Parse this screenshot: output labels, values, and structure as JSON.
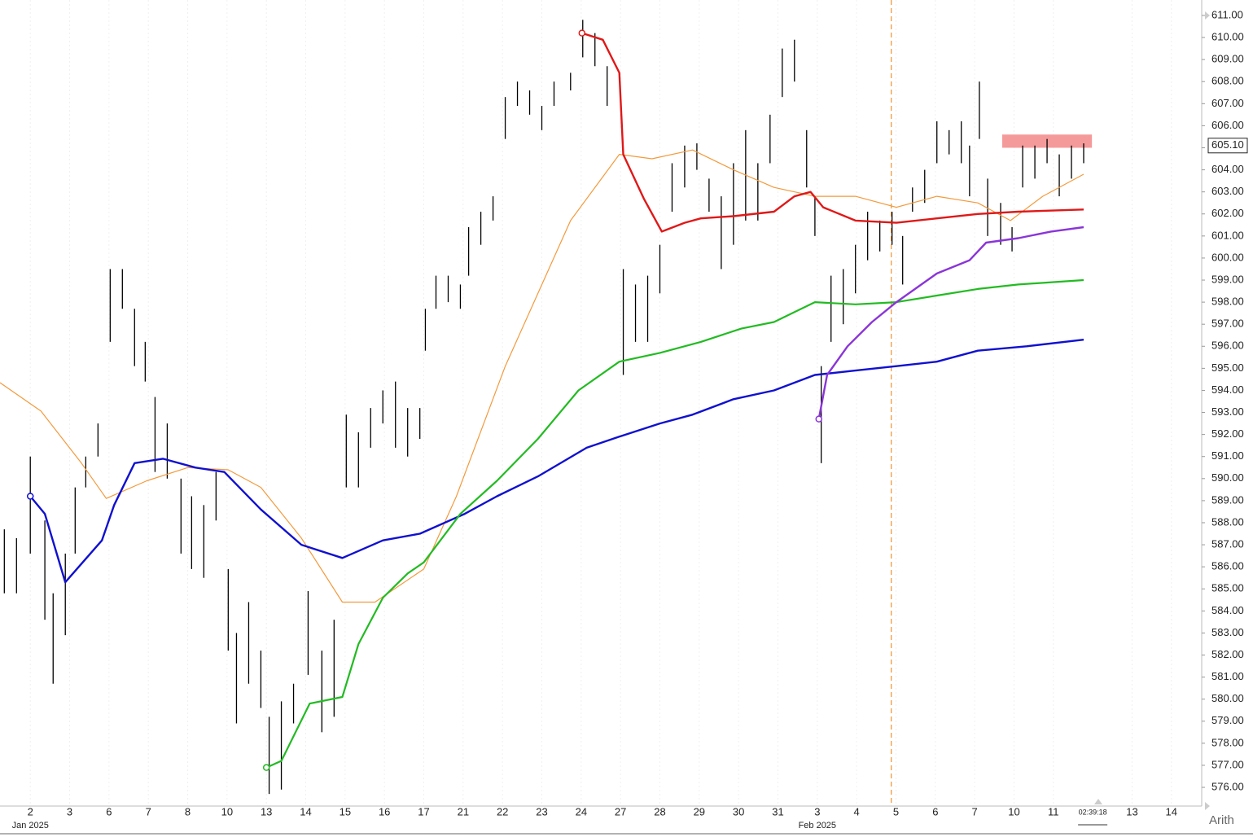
{
  "chart_data": {
    "type": "ohlc",
    "categories": [
      "2",
      "3",
      "6",
      "7",
      "8",
      "10",
      "13",
      "14",
      "15",
      "16",
      "17",
      "21",
      "22",
      "23",
      "24",
      "27",
      "28",
      "29",
      "30",
      "31",
      "3",
      "4",
      "5",
      "6",
      "7",
      "10",
      "11",
      "02:39:18",
      "13",
      "14"
    ],
    "period_labels": [
      "Jan 2025",
      null,
      null,
      null,
      null,
      null,
      null,
      null,
      null,
      null,
      null,
      null,
      null,
      null,
      null,
      null,
      null,
      null,
      null,
      null,
      "Feb 2025",
      null,
      null,
      null,
      null,
      null,
      null,
      null,
      null,
      null
    ],
    "scale_label": "Arith",
    "xlim": [
      -0.77,
      29.77
    ],
    "ylim": [
      575.3,
      611.7
    ],
    "yticks": [
      {
        "value": 576,
        "label": "576.00"
      },
      {
        "value": 577,
        "label": "577.00"
      },
      {
        "value": 578,
        "label": "578.00"
      },
      {
        "value": 579,
        "label": "579.00"
      },
      {
        "value": 580,
        "label": "580.00"
      },
      {
        "value": 581,
        "label": "581.00"
      },
      {
        "value": 582,
        "label": "582.00"
      },
      {
        "value": 583,
        "label": "583.00"
      },
      {
        "value": 584,
        "label": "584.00"
      },
      {
        "value": 585,
        "label": "585.00"
      },
      {
        "value": 586,
        "label": "586.00"
      },
      {
        "value": 587,
        "label": "587.00"
      },
      {
        "value": 588,
        "label": "588.00"
      },
      {
        "value": 589,
        "label": "589.00"
      },
      {
        "value": 590,
        "label": "590.00"
      },
      {
        "value": 591,
        "label": "591.00"
      },
      {
        "value": 592,
        "label": "592.00"
      },
      {
        "value": 593,
        "label": "593.00"
      },
      {
        "value": 594,
        "label": "594.00"
      },
      {
        "value": 595,
        "label": "595.00"
      },
      {
        "value": 596,
        "label": "596.00"
      },
      {
        "value": 597,
        "label": "597.00"
      },
      {
        "value": 598,
        "label": "598.00"
      },
      {
        "value": 599,
        "label": "599.00"
      },
      {
        "value": 600,
        "label": "600.00"
      },
      {
        "value": 601,
        "label": "601.00"
      },
      {
        "value": 602,
        "label": "602.00"
      },
      {
        "value": 603,
        "label": "603.00"
      },
      {
        "value": 604,
        "label": "604.00"
      },
      {
        "value": 605,
        "label": "605.00"
      },
      {
        "value": 606,
        "label": "606.00"
      },
      {
        "value": 607,
        "label": "607.00"
      },
      {
        "value": 608,
        "label": "608.00"
      },
      {
        "value": 609,
        "label": "609.00"
      },
      {
        "value": 610,
        "label": "610.00"
      },
      {
        "value": 611,
        "label": "611.00"
      }
    ],
    "last_price": {
      "value": 605.1,
      "label": "605.10"
    },
    "bar_color": "#000000",
    "bars": {
      "x": [
        -0.66,
        -0.35,
        0,
        0.37,
        0.58,
        0.89,
        1.14,
        1.41,
        1.72,
        2.03,
        2.34,
        2.65,
        2.92,
        3.17,
        3.48,
        3.83,
        4.1,
        4.41,
        4.72,
        5.03,
        5.24,
        5.55,
        5.86,
        6.07,
        6.38,
        6.69,
        7.06,
        7.41,
        7.72,
        8.03,
        8.34,
        8.65,
        8.96,
        9.28,
        9.59,
        9.9,
        10.04,
        10.31,
        10.62,
        10.93,
        11.14,
        11.45,
        11.76,
        12.07,
        12.38,
        12.69,
        13.0,
        13.31,
        13.73,
        14.04,
        14.35,
        14.66,
        15.07,
        15.38,
        15.69,
        16.0,
        16.31,
        16.63,
        16.94,
        17.25,
        17.56,
        17.87,
        18.18,
        18.49,
        18.8,
        19.11,
        19.42,
        19.73,
        19.94,
        20.1,
        20.35,
        20.66,
        20.97,
        21.28,
        21.59,
        21.9,
        22.17,
        22.42,
        22.73,
        23.04,
        23.35,
        23.66,
        23.87,
        24.12,
        24.33,
        24.66,
        24.95,
        25.22,
        25.53,
        25.84,
        26.15,
        26.46,
        26.77
      ],
      "high": [
        587.7,
        587.3,
        591.0,
        588.1,
        584.8,
        586.6,
        589.6,
        591.0,
        592.5,
        599.5,
        599.5,
        597.7,
        596.2,
        593.7,
        592.5,
        590.0,
        589.2,
        588.8,
        590.3,
        585.9,
        583.0,
        584.4,
        582.2,
        579.2,
        579.9,
        580.7,
        584.9,
        582.2,
        583.6,
        592.9,
        592.1,
        593.2,
        594.0,
        594.4,
        593.2,
        593.2,
        597.7,
        599.2,
        599.2,
        598.8,
        601.4,
        602.1,
        602.8,
        607.3,
        608.0,
        607.6,
        606.9,
        608.0,
        608.4,
        610.8,
        610.2,
        608.7,
        599.5,
        598.8,
        599.2,
        600.6,
        604.3,
        605.1,
        605.2,
        603.6,
        602.8,
        604.3,
        605.8,
        604.3,
        606.5,
        609.5,
        609.9,
        605.8,
        602.8,
        595.1,
        599.2,
        599.5,
        600.6,
        602.1,
        601.7,
        602.1,
        601.0,
        603.2,
        604.0,
        606.2,
        605.8,
        606.2,
        605.1,
        608.0,
        603.6,
        602.5,
        601.4,
        605.1,
        605.1,
        605.4,
        604.7,
        605.1,
        605.2
      ],
      "low": [
        584.8,
        584.8,
        586.6,
        583.6,
        580.7,
        582.9,
        586.6,
        589.6,
        591.0,
        596.2,
        597.7,
        595.1,
        594.4,
        590.3,
        590.0,
        586.6,
        585.9,
        585.5,
        588.1,
        582.2,
        578.9,
        580.7,
        579.6,
        575.7,
        575.9,
        578.9,
        581.1,
        578.5,
        579.2,
        589.6,
        589.6,
        591.4,
        592.5,
        591.4,
        591.0,
        591.8,
        595.8,
        597.7,
        598.0,
        597.7,
        599.2,
        600.6,
        601.7,
        605.4,
        606.9,
        606.5,
        605.8,
        606.9,
        607.6,
        609.1,
        608.7,
        606.9,
        594.7,
        596.2,
        596.2,
        598.4,
        602.1,
        603.2,
        604.0,
        602.1,
        599.5,
        600.6,
        601.7,
        601.7,
        604.3,
        607.3,
        608.0,
        603.2,
        601.0,
        590.7,
        596.2,
        597.0,
        598.4,
        599.9,
        600.3,
        600.6,
        598.8,
        602.1,
        602.5,
        604.3,
        604.7,
        604.3,
        602.8,
        605.4,
        601.0,
        600.6,
        600.3,
        603.2,
        603.6,
        604.3,
        602.8,
        603.6,
        604.3
      ]
    },
    "lines": [
      {
        "color": "#f39a3c",
        "width": 1.2,
        "marker": false,
        "x": [
          -0.77,
          0.27,
          1.3,
          1.93,
          2.96,
          4.0,
          5.03,
          5.86,
          6.89,
          7.93,
          8.76,
          10.0,
          10.83,
          12.07,
          13.73,
          14.97,
          15.8,
          16.83,
          17.87,
          18.9,
          19.94,
          20.97,
          22.01,
          23.04,
          24.08,
          24.91,
          25.73,
          26.77
        ],
        "values": [
          594.35,
          593.06,
          590.7,
          589.1,
          589.9,
          590.5,
          590.4,
          589.6,
          587.3,
          584.4,
          584.4,
          585.9,
          589.2,
          595.1,
          601.7,
          604.7,
          604.5,
          604.9,
          604.0,
          603.2,
          602.8,
          602.8,
          602.3,
          602.8,
          602.5,
          601.7,
          602.8,
          603.8
        ]
      },
      {
        "color": "#1010d0",
        "width": 2.4,
        "marker": true,
        "x": [
          0,
          0.37,
          0.89,
          1.82,
          2.13,
          2.65,
          3.37,
          4.2,
          4.93,
          5.86,
          6.89,
          7.93,
          8.96,
          9.9,
          11.04,
          11.86,
          12.9,
          14.14,
          14.97,
          16.0,
          16.83,
          17.87,
          18.9,
          19.94,
          20.97,
          22.01,
          23.04,
          24.08,
          25.32,
          26.77
        ],
        "values": [
          589.2,
          588.4,
          585.3,
          587.2,
          588.8,
          590.7,
          590.9,
          590.5,
          590.3,
          588.6,
          587.0,
          586.4,
          587.2,
          587.5,
          588.4,
          589.2,
          590.1,
          591.4,
          591.9,
          592.5,
          592.9,
          593.6,
          594.0,
          594.7,
          594.9,
          595.1,
          595.3,
          595.8,
          596.0,
          596.3
        ]
      },
      {
        "color": "#22bb22",
        "width": 2.2,
        "marker": true,
        "x": [
          6.0,
          6.38,
          7.1,
          7.93,
          8.34,
          8.96,
          9.59,
          10.0,
          10.93,
          11.86,
          12.9,
          13.93,
          14.97,
          16.0,
          17.04,
          18.07,
          18.9,
          19.94,
          20.97,
          22.01,
          23.04,
          24.08,
          25.11,
          26.77
        ],
        "values": [
          576.9,
          577.2,
          579.8,
          580.1,
          582.5,
          584.6,
          585.7,
          586.2,
          588.4,
          589.9,
          591.8,
          594.0,
          595.3,
          595.7,
          596.2,
          596.8,
          597.1,
          598.0,
          597.9,
          598.0,
          598.3,
          598.6,
          598.8,
          599.0
        ]
      },
      {
        "color": "#e01818",
        "width": 2.4,
        "marker": true,
        "x": [
          14.02,
          14.55,
          14.97,
          15.07,
          15.59,
          16.05,
          16.63,
          17.04,
          17.87,
          18.9,
          19.42,
          19.83,
          20.15,
          20.97,
          22.01,
          23.04,
          24.08,
          25.11,
          26.77
        ],
        "values": [
          610.2,
          609.9,
          608.4,
          604.7,
          602.7,
          601.2,
          601.6,
          601.8,
          601.9,
          602.1,
          602.8,
          603.0,
          602.3,
          601.7,
          601.6,
          601.8,
          602.0,
          602.1,
          602.2
        ]
      },
      {
        "color": "#8a35d8",
        "width": 2.4,
        "marker": true,
        "x": [
          20.04,
          20.25,
          20.77,
          21.39,
          22.01,
          23.04,
          23.87,
          24.29,
          25.11,
          25.94,
          26.77
        ],
        "values": [
          592.7,
          594.7,
          596.0,
          597.1,
          598.0,
          599.3,
          599.9,
          600.7,
          600.9,
          601.2,
          601.4
        ]
      }
    ],
    "event_line": {
      "x": 21.88,
      "color": "#f39a3c"
    },
    "zone": {
      "x": [
        24.7,
        26.98
      ],
      "y": [
        605.0,
        605.6
      ],
      "color": "#f59a9a"
    }
  }
}
